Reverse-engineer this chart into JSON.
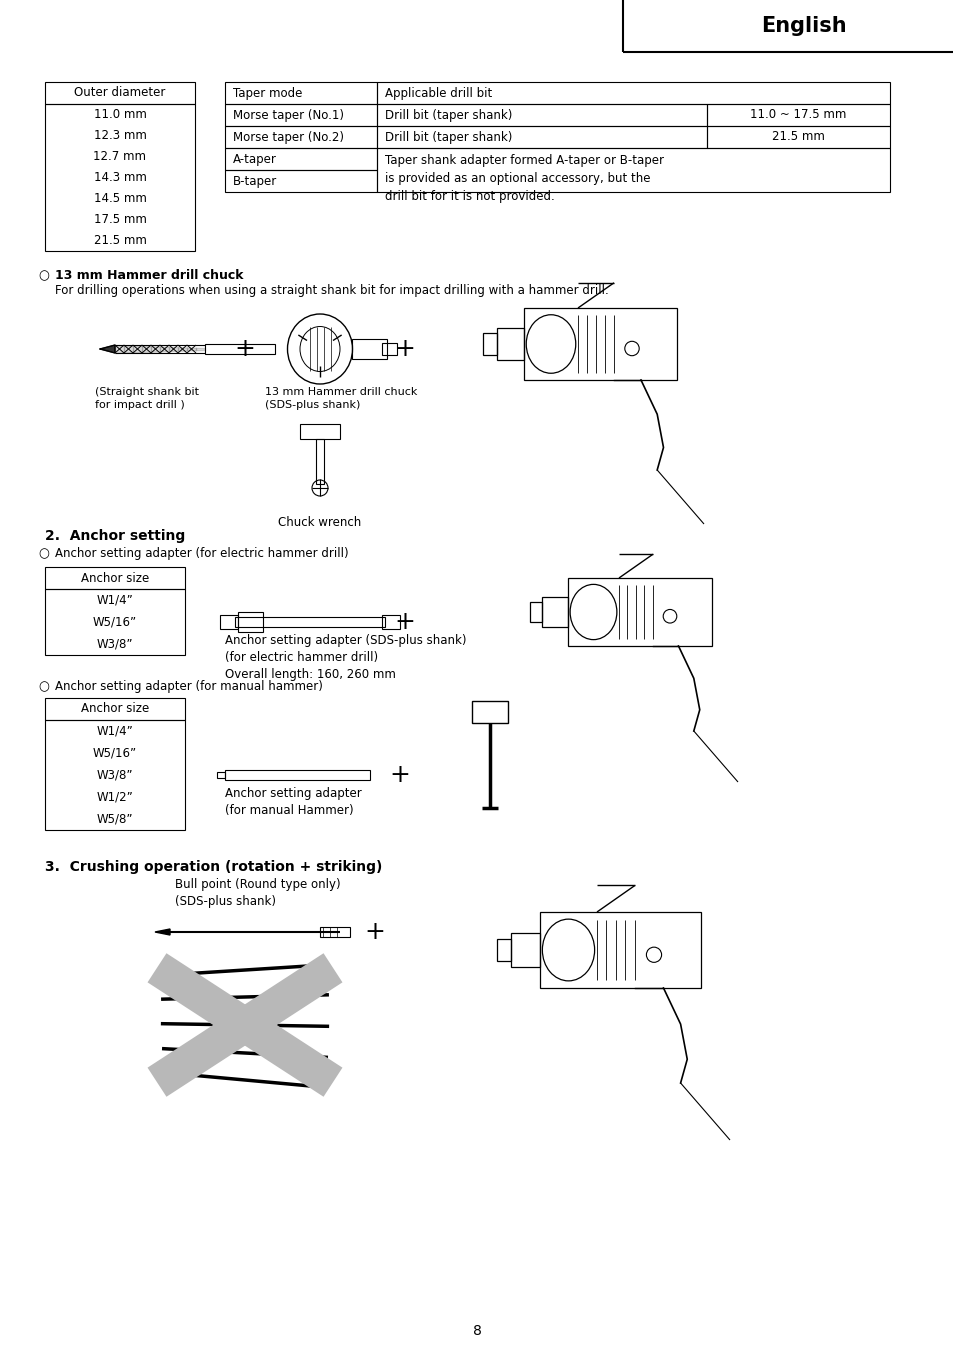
{
  "bg": "#ffffff",
  "header_text": "English",
  "table1_header": "Outer diameter",
  "table1_values": [
    "11.0 mm",
    "12.3 mm",
    "12.7 mm",
    "14.3 mm",
    "14.5 mm",
    "17.5 mm",
    "21.5 mm"
  ],
  "t2r0c1": "Taper mode",
  "t2r0c2": "Applicable drill bit",
  "t2r1c1": "Morse taper (No.1)",
  "t2r1c2": "Drill bit (taper shank)",
  "t2r1c3": "11.0 ~ 17.5 mm",
  "t2r2c1": "Morse taper (No.2)",
  "t2r2c2": "Drill bit (taper shank)",
  "t2r2c3": "21.5 mm",
  "t2r3c1": "A-taper",
  "t2r4c1": "B-taper",
  "t2r34c2": "Taper shank adapter formed A-taper or B-taper\nis provided as an optional accessory, but the\ndrill bit for it is not provided.",
  "bullet": "○",
  "s1_title": "13 mm Hammer drill chuck",
  "s1_desc": "For drilling operations when using a straight shank bit for impact drilling with a hammer drill.",
  "label_shank": "(Straight shank bit\nfor impact drill )",
  "label_chuck": "13 mm Hammer drill chuck\n(SDS-plus shank)",
  "label_wrench": "Chuck wrench",
  "s2_title": "2.  Anchor setting",
  "s2_sub1": "Anchor setting adapter (for electric hammer drill)",
  "anchor_hdr": "Anchor size",
  "anchor1_vals": [
    "W1/4”",
    "W5/16”",
    "W3/8”"
  ],
  "anchor1_label": "Anchor setting adapter (SDS-plus shank)\n(for electric hammer drill)\nOverall length: 160, 260 mm",
  "s2_sub2": "Anchor setting adapter (for manual hammer)",
  "anchor2_vals": [
    "W1/4”",
    "W5/16”",
    "W3/8”",
    "W1/2”",
    "W5/8”"
  ],
  "anchor2_label": "Anchor setting adapter\n(for manual Hammer)",
  "s3_title": "3.  Crushing operation (rotation + striking)",
  "s3_label": "Bull point (Round type only)\n(SDS-plus shank)",
  "page_num": "8"
}
